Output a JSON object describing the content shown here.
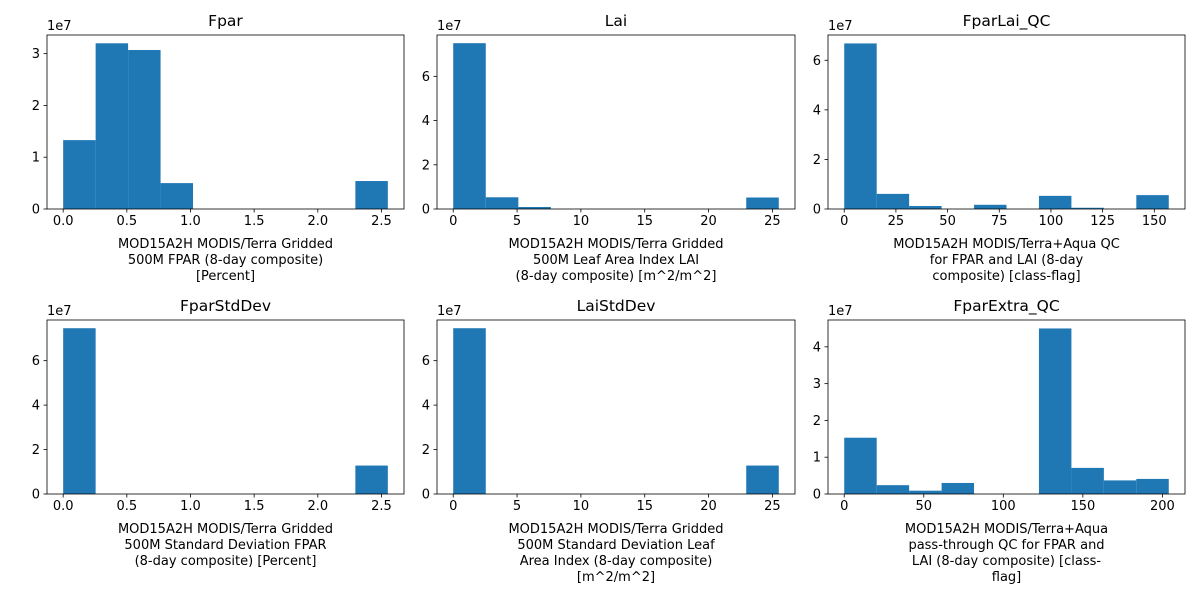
{
  "chart_data": [
    {
      "type": "bar",
      "title": "Fpar",
      "xlabel_lines": [
        "MOD15A2H MODIS/Terra Gridded",
        "500M FPAR (8-day composite)",
        "[Percent]"
      ],
      "ylabel": "",
      "y_offset_label": "1e7",
      "bar_color": "#1f77b4",
      "xlim": [
        -0.127,
        2.677
      ],
      "ylim": [
        0,
        33600000
      ],
      "xticks": [
        0.0,
        0.5,
        1.0,
        1.5,
        2.0,
        2.5
      ],
      "xtick_labels": [
        "0.0",
        "0.5",
        "1.0",
        "1.5",
        "2.0",
        "2.5"
      ],
      "yticks": [
        0,
        10000000,
        20000000,
        30000000
      ],
      "ytick_labels": [
        "0",
        "1",
        "2",
        "3"
      ],
      "bin_edges": [
        0.0,
        0.255,
        0.51,
        0.765,
        1.02,
        1.275,
        1.53,
        1.785,
        2.04,
        2.295,
        2.55
      ],
      "values": [
        13300000,
        32000000,
        30700000,
        5000000,
        0,
        0,
        0,
        0,
        0,
        5400000
      ]
    },
    {
      "type": "bar",
      "title": "Lai",
      "xlabel_lines": [
        "MOD15A2H MODIS/Terra Gridded",
        "500M Leaf Area Index LAI",
        "(8-day composite) [m^2/m^2]"
      ],
      "ylabel": "",
      "y_offset_label": "1e7",
      "bar_color": "#1f77b4",
      "xlim": [
        -1.27,
        26.77
      ],
      "ylim": [
        0,
        78700000
      ],
      "xticks": [
        0,
        5,
        10,
        15,
        20,
        25
      ],
      "xtick_labels": [
        "0",
        "5",
        "10",
        "15",
        "20",
        "25"
      ],
      "yticks": [
        0,
        20000000,
        40000000,
        60000000
      ],
      "ytick_labels": [
        "0",
        "2",
        "4",
        "6"
      ],
      "bin_edges": [
        0,
        2.55,
        5.1,
        7.65,
        10.2,
        12.75,
        15.3,
        17.85,
        20.4,
        22.95,
        25.5
      ],
      "values": [
        75000000,
        5300000,
        900000,
        0,
        0,
        0,
        0,
        0,
        0,
        5200000
      ]
    },
    {
      "type": "bar",
      "title": "FparLai_QC",
      "xlabel_lines": [
        "MOD15A2H MODIS/Terra+Aqua QC",
        "for FPAR and LAI (8-day",
        "composite) [class-flag]"
      ],
      "ylabel": "",
      "y_offset_label": "1e7",
      "bar_color": "#1f77b4",
      "xlim": [
        -7.85,
        164.85
      ],
      "ylim": [
        0,
        70200000
      ],
      "xticks": [
        0,
        25,
        50,
        75,
        100,
        125,
        150
      ],
      "xtick_labels": [
        "0",
        "25",
        "50",
        "75",
        "100",
        "125",
        "150"
      ],
      "yticks": [
        0,
        20000000,
        40000000,
        60000000
      ],
      "ytick_labels": [
        "0",
        "2",
        "4",
        "6"
      ],
      "bin_edges": [
        0,
        15.7,
        31.4,
        47.1,
        62.8,
        78.5,
        94.2,
        109.9,
        125.6,
        141.3,
        157
      ],
      "values": [
        66800000,
        6100000,
        1200000,
        0,
        1700000,
        0,
        5300000,
        500000,
        0,
        5600000
      ]
    },
    {
      "type": "bar",
      "title": "FparStdDev",
      "xlabel_lines": [
        "MOD15A2H MODIS/Terra Gridded",
        "500M Standard Deviation FPAR",
        "(8-day composite) [Percent]"
      ],
      "ylabel": "",
      "y_offset_label": "1e7",
      "bar_color": "#1f77b4",
      "xlim": [
        -0.127,
        2.677
      ],
      "ylim": [
        0,
        78300000
      ],
      "xticks": [
        0.0,
        0.5,
        1.0,
        1.5,
        2.0,
        2.5
      ],
      "xtick_labels": [
        "0.0",
        "0.5",
        "1.0",
        "1.5",
        "2.0",
        "2.5"
      ],
      "yticks": [
        0,
        20000000,
        40000000,
        60000000
      ],
      "ytick_labels": [
        "0",
        "2",
        "4",
        "6"
      ],
      "bin_edges": [
        0.0,
        0.255,
        0.51,
        0.765,
        1.02,
        1.275,
        1.53,
        1.785,
        2.04,
        2.295,
        2.55
      ],
      "values": [
        74600000,
        0,
        0,
        0,
        0,
        0,
        0,
        0,
        0,
        12800000
      ]
    },
    {
      "type": "bar",
      "title": "LaiStdDev",
      "xlabel_lines": [
        "MOD15A2H MODIS/Terra Gridded",
        "500M Standard Deviation Leaf",
        "Area Index (8-day composite)",
        "[m^2/m^2]"
      ],
      "ylabel": "",
      "y_offset_label": "1e7",
      "bar_color": "#1f77b4",
      "xlim": [
        -1.27,
        26.77
      ],
      "ylim": [
        0,
        78300000
      ],
      "xticks": [
        0,
        5,
        10,
        15,
        20,
        25
      ],
      "xtick_labels": [
        "0",
        "5",
        "10",
        "15",
        "20",
        "25"
      ],
      "yticks": [
        0,
        20000000,
        40000000,
        60000000
      ],
      "ytick_labels": [
        "0",
        "2",
        "4",
        "6"
      ],
      "bin_edges": [
        0,
        2.55,
        5.1,
        7.65,
        10.2,
        12.75,
        15.3,
        17.85,
        20.4,
        22.95,
        25.5
      ],
      "values": [
        74600000,
        0,
        0,
        0,
        0,
        0,
        0,
        0,
        0,
        12800000
      ]
    },
    {
      "type": "bar",
      "title": "FparExtra_QC",
      "xlabel_lines": [
        "MOD15A2H MODIS/Terra+Aqua",
        "pass-through QC for FPAR and",
        "LAI (8-day composite) [class-",
        "flag]"
      ],
      "ylabel": "",
      "y_offset_label": "1e7",
      "bar_color": "#1f77b4",
      "xlim": [
        -10.2,
        214.2
      ],
      "ylim": [
        0,
        47300000
      ],
      "xticks": [
        0,
        50,
        100,
        150,
        200
      ],
      "xtick_labels": [
        "0",
        "50",
        "100",
        "150",
        "200"
      ],
      "yticks": [
        0,
        10000000,
        20000000,
        30000000,
        40000000
      ],
      "ytick_labels": [
        "0",
        "1",
        "2",
        "3",
        "4"
      ],
      "bin_edges": [
        0,
        20.4,
        40.8,
        61.2,
        81.6,
        102,
        122.4,
        142.8,
        163.2,
        183.6,
        204
      ],
      "values": [
        15300000,
        2400000,
        900000,
        3000000,
        0,
        0,
        45000000,
        7100000,
        3700000,
        4100000
      ]
    }
  ]
}
